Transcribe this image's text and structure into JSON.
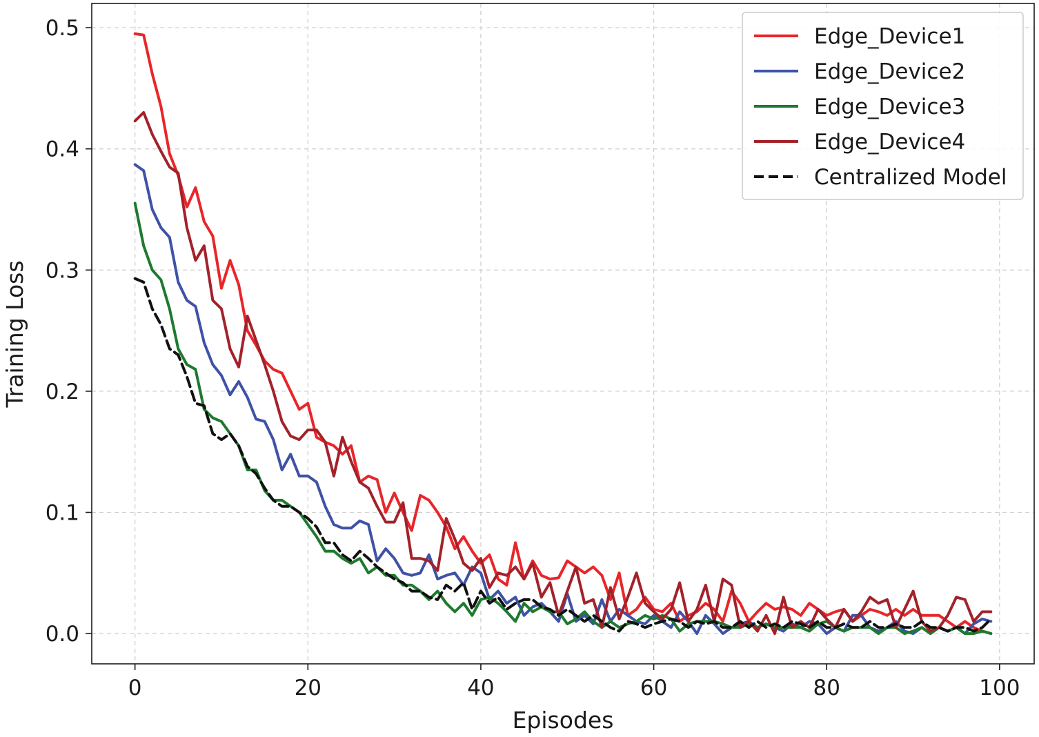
{
  "chart_data": {
    "type": "line",
    "title": "",
    "xlabel": "Episodes",
    "ylabel": "Training Loss",
    "xlim": [
      -5,
      104
    ],
    "ylim": [
      -0.025,
      0.52
    ],
    "x_ticks": [
      0,
      20,
      40,
      60,
      80,
      100
    ],
    "x_tick_labels": [
      "0",
      "20",
      "40",
      "60",
      "80",
      "100"
    ],
    "y_ticks": [
      0.0,
      0.1,
      0.2,
      0.3,
      0.4,
      0.5
    ],
    "y_tick_labels": [
      "0.0",
      "0.1",
      "0.2",
      "0.3",
      "0.4",
      "0.5"
    ],
    "grid": true,
    "legend_position": "top-right",
    "x": [
      0,
      1,
      2,
      3,
      4,
      5,
      6,
      7,
      8,
      9,
      10,
      11,
      12,
      13,
      14,
      15,
      16,
      17,
      18,
      19,
      20,
      21,
      22,
      23,
      24,
      25,
      26,
      27,
      28,
      29,
      30,
      31,
      32,
      33,
      34,
      35,
      36,
      37,
      38,
      39,
      40,
      41,
      42,
      43,
      44,
      45,
      46,
      47,
      48,
      49,
      50,
      51,
      52,
      53,
      54,
      55,
      56,
      57,
      58,
      59,
      60,
      61,
      62,
      63,
      64,
      65,
      66,
      67,
      68,
      69,
      70,
      71,
      72,
      73,
      74,
      75,
      76,
      77,
      78,
      79,
      80,
      81,
      82,
      83,
      84,
      85,
      86,
      87,
      88,
      89,
      90,
      91,
      92,
      93,
      94,
      95,
      96,
      97,
      98,
      99
    ],
    "series": [
      {
        "name": "Edge_Device1",
        "color": "#e8262a",
        "dash": "solid",
        "values": [
          0.495,
          0.494,
          0.462,
          0.435,
          0.396,
          0.378,
          0.352,
          0.368,
          0.34,
          0.328,
          0.285,
          0.308,
          0.288,
          0.25,
          0.238,
          0.225,
          0.218,
          0.215,
          0.2,
          0.185,
          0.19,
          0.162,
          0.158,
          0.155,
          0.148,
          0.155,
          0.125,
          0.13,
          0.127,
          0.1,
          0.116,
          0.1,
          0.085,
          0.114,
          0.11,
          0.1,
          0.088,
          0.07,
          0.08,
          0.068,
          0.058,
          0.065,
          0.045,
          0.04,
          0.075,
          0.045,
          0.06,
          0.048,
          0.045,
          0.046,
          0.06,
          0.055,
          0.05,
          0.055,
          0.048,
          0.028,
          0.05,
          0.015,
          0.02,
          0.03,
          0.02,
          0.018,
          0.025,
          0.01,
          0.015,
          0.018,
          0.025,
          0.02,
          0.01,
          0.035,
          0.025,
          0.01,
          0.018,
          0.025,
          0.02,
          0.022,
          0.02,
          0.015,
          0.025,
          0.02,
          0.015,
          0.018,
          0.02,
          0.01,
          0.015,
          0.02,
          0.018,
          0.015,
          0.02,
          0.015,
          0.02,
          0.015,
          0.015,
          0.015,
          0.01,
          0.005,
          0.01,
          0.005,
          0.002,
          0.0
        ]
      },
      {
        "name": "Edge_Device2",
        "color": "#3f52a6",
        "dash": "solid",
        "values": [
          0.387,
          0.382,
          0.35,
          0.335,
          0.327,
          0.29,
          0.275,
          0.27,
          0.24,
          0.222,
          0.213,
          0.197,
          0.208,
          0.195,
          0.177,
          0.175,
          0.16,
          0.135,
          0.148,
          0.13,
          0.13,
          0.125,
          0.105,
          0.09,
          0.087,
          0.087,
          0.093,
          0.09,
          0.06,
          0.07,
          0.062,
          0.05,
          0.048,
          0.05,
          0.065,
          0.045,
          0.048,
          0.05,
          0.04,
          0.055,
          0.05,
          0.028,
          0.035,
          0.025,
          0.03,
          0.015,
          0.022,
          0.025,
          0.018,
          0.01,
          0.033,
          0.01,
          0.015,
          0.008,
          0.028,
          0.01,
          0.02,
          0.015,
          0.01,
          0.008,
          0.015,
          0.01,
          0.005,
          0.018,
          0.01,
          0.0,
          0.015,
          0.008,
          0.0,
          0.005,
          0.008,
          0.01,
          0.005,
          0.008,
          0.005,
          0.002,
          0.008,
          0.005,
          0.01,
          0.008,
          0.0,
          0.005,
          0.002,
          0.015,
          0.015,
          0.005,
          0.002,
          0.005,
          0.01,
          0.002,
          0.0,
          0.005,
          0.0,
          0.005,
          0.002,
          0.005,
          0.0,
          0.008,
          0.012,
          0.01
        ]
      },
      {
        "name": "Edge_Device3",
        "color": "#1d7a2e",
        "dash": "solid",
        "values": [
          0.355,
          0.32,
          0.3,
          0.292,
          0.268,
          0.235,
          0.222,
          0.218,
          0.185,
          0.178,
          0.175,
          0.165,
          0.155,
          0.135,
          0.135,
          0.118,
          0.11,
          0.11,
          0.105,
          0.1,
          0.09,
          0.08,
          0.068,
          0.068,
          0.062,
          0.058,
          0.062,
          0.05,
          0.055,
          0.048,
          0.048,
          0.04,
          0.04,
          0.035,
          0.028,
          0.035,
          0.025,
          0.018,
          0.025,
          0.015,
          0.028,
          0.03,
          0.025,
          0.018,
          0.01,
          0.025,
          0.018,
          0.022,
          0.018,
          0.018,
          0.008,
          0.012,
          0.018,
          0.01,
          0.005,
          0.01,
          0.005,
          0.008,
          0.01,
          0.015,
          0.012,
          0.015,
          0.012,
          0.002,
          0.008,
          0.01,
          0.01,
          0.01,
          0.008,
          0.005,
          0.005,
          0.008,
          0.005,
          0.008,
          0.005,
          0.005,
          0.005,
          0.005,
          0.002,
          0.008,
          0.01,
          0.005,
          0.002,
          0.005,
          0.005,
          0.005,
          0.0,
          0.005,
          0.005,
          0.0,
          0.002,
          0.005,
          0.0,
          0.005,
          0.002,
          0.005,
          0.0,
          0.0,
          0.002,
          0.0
        ]
      },
      {
        "name": "Edge_Device4",
        "color": "#a3222a",
        "dash": "solid",
        "values": [
          0.423,
          0.43,
          0.412,
          0.398,
          0.385,
          0.38,
          0.335,
          0.308,
          0.32,
          0.275,
          0.268,
          0.235,
          0.22,
          0.262,
          0.242,
          0.222,
          0.2,
          0.175,
          0.163,
          0.16,
          0.168,
          0.168,
          0.158,
          0.13,
          0.162,
          0.142,
          0.125,
          0.12,
          0.105,
          0.092,
          0.092,
          0.108,
          0.062,
          0.062,
          0.06,
          0.052,
          0.095,
          0.078,
          0.058,
          0.052,
          0.062,
          0.038,
          0.05,
          0.048,
          0.055,
          0.045,
          0.058,
          0.03,
          0.042,
          0.015,
          0.035,
          0.055,
          0.025,
          0.028,
          0.005,
          0.038,
          0.012,
          0.03,
          0.05,
          0.025,
          0.018,
          0.012,
          0.02,
          0.042,
          0.01,
          0.02,
          0.04,
          0.01,
          0.045,
          0.04,
          0.005,
          0.01,
          0.002,
          0.015,
          0.0,
          0.03,
          0.005,
          0.01,
          0.005,
          0.02,
          0.012,
          0.005,
          0.02,
          0.01,
          0.018,
          0.03,
          0.025,
          0.028,
          0.005,
          0.02,
          0.035,
          0.01,
          0.002,
          0.005,
          0.015,
          0.03,
          0.028,
          0.01,
          0.018,
          0.018
        ]
      },
      {
        "name": "Centralized Model",
        "color": "#111111",
        "dash": "dashed",
        "values": [
          0.293,
          0.29,
          0.268,
          0.255,
          0.235,
          0.23,
          0.212,
          0.19,
          0.188,
          0.165,
          0.16,
          0.165,
          0.155,
          0.138,
          0.132,
          0.12,
          0.11,
          0.105,
          0.105,
          0.1,
          0.095,
          0.088,
          0.075,
          0.075,
          0.065,
          0.06,
          0.068,
          0.062,
          0.055,
          0.05,
          0.045,
          0.042,
          0.035,
          0.035,
          0.03,
          0.028,
          0.04,
          0.035,
          0.042,
          0.02,
          0.035,
          0.025,
          0.03,
          0.02,
          0.025,
          0.028,
          0.028,
          0.022,
          0.02,
          0.015,
          0.02,
          0.015,
          0.01,
          0.015,
          0.01,
          0.005,
          0.002,
          0.01,
          0.008,
          0.005,
          0.008,
          0.01,
          0.012,
          0.01,
          0.005,
          0.01,
          0.008,
          0.01,
          0.005,
          0.005,
          0.01,
          0.005,
          0.01,
          0.005,
          0.008,
          0.005,
          0.01,
          0.008,
          0.005,
          0.01,
          0.005,
          0.005,
          0.008,
          0.005,
          0.005,
          0.01,
          0.005,
          0.005,
          0.008,
          0.005,
          0.005,
          0.01,
          0.005,
          0.005,
          0.002,
          0.005,
          0.005,
          0.002,
          0.005,
          0.012
        ]
      }
    ]
  }
}
